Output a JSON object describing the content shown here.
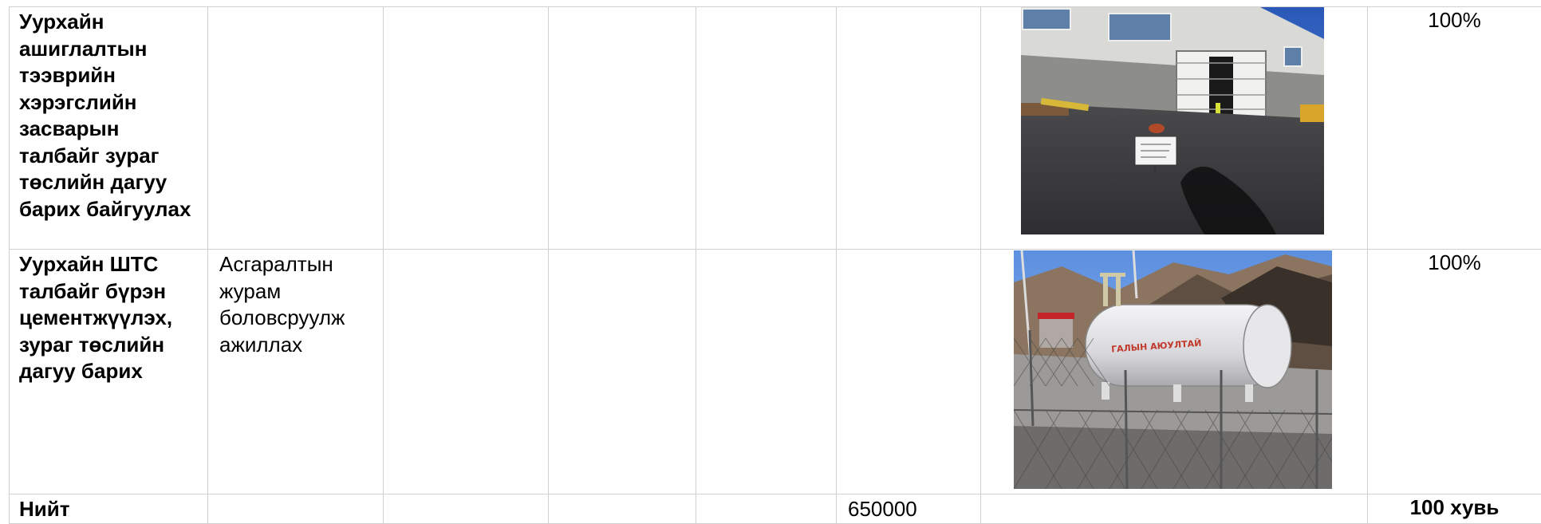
{
  "rows": [
    {
      "task": "Уурхайн ашиглалтын тээврийн хэрэгслийн засварын талбайг зураг төслийн дагуу барих байгуулах",
      "action": "",
      "c3": "",
      "c4": "",
      "c5": "",
      "amount": "",
      "photo": "maintenance-building-photo",
      "percent": "100%"
    },
    {
      "task": "Уурхайн ШТС талбайг бүрэн цементжүүлэх, зураг төслийн дагуу барих",
      "action": "Асгаралтын журам боловсруулж ажиллах",
      "c3": "",
      "c4": "",
      "c5": "",
      "amount": "",
      "photo": "fuel-tank-photo",
      "percent": "100%"
    }
  ],
  "total": {
    "label": "Нийт",
    "amount": "650000",
    "percent": "100 хувь"
  },
  "photo2_tank_text": "ГАЛЫН АЮУЛТАЙ"
}
